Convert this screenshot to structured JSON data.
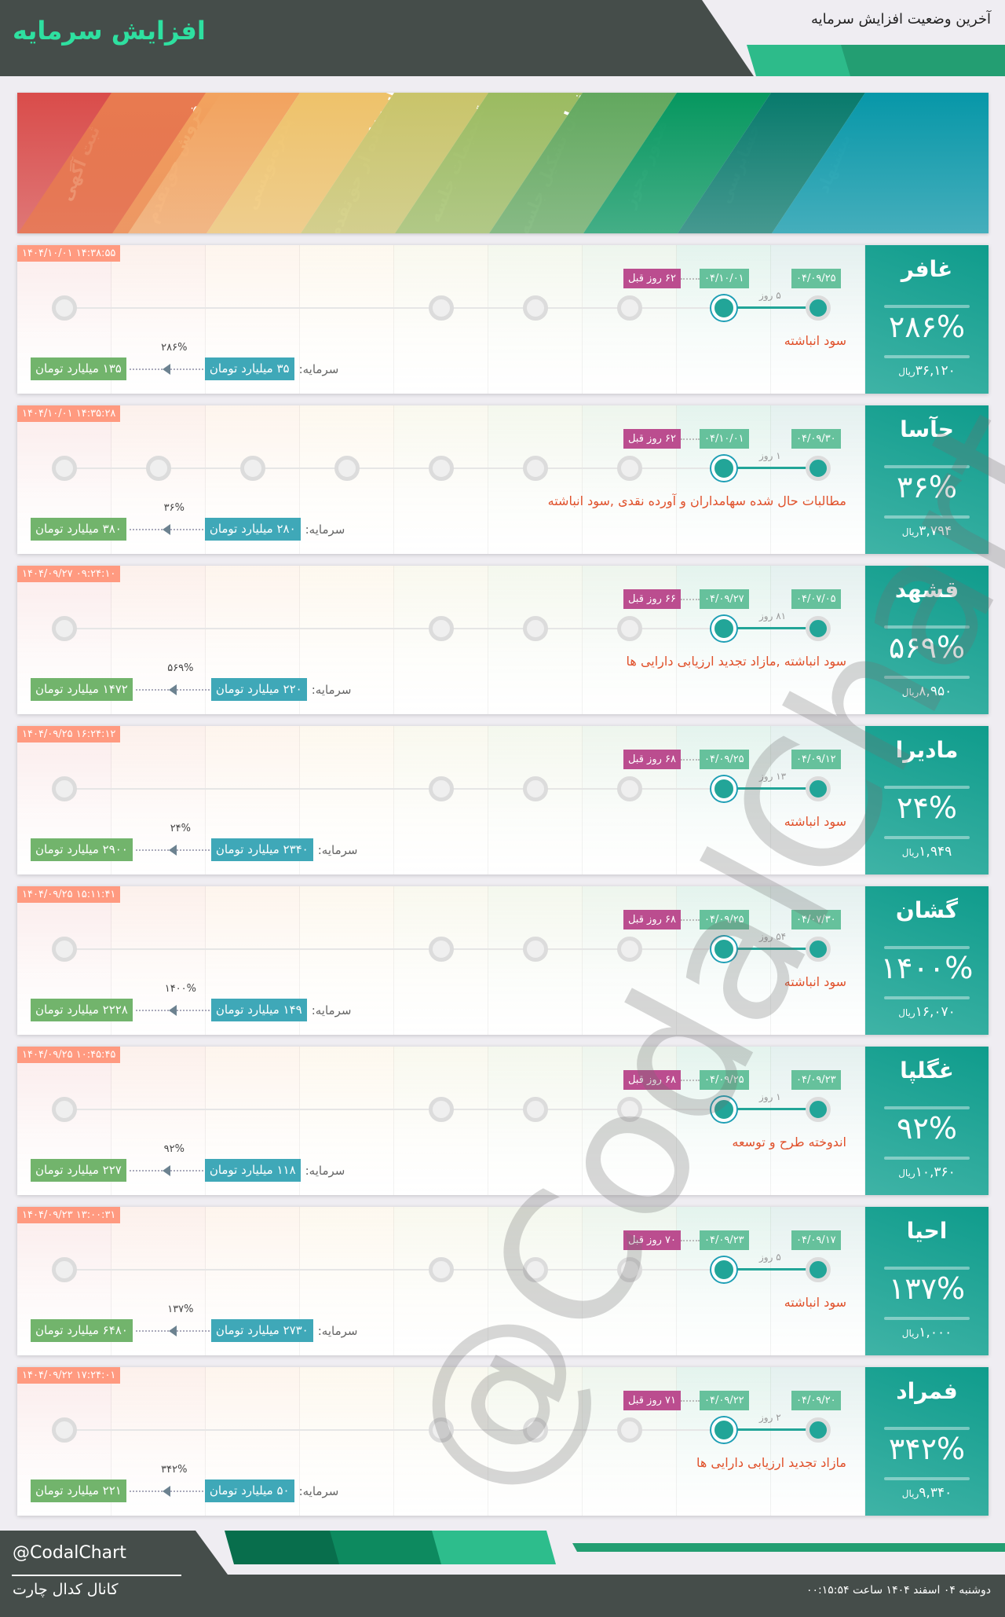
{
  "header": {
    "title": "افزایش سرمایه",
    "subtitle": "آخرین وضعیت افزایش سرمایه"
  },
  "stages": [
    {
      "label": "ثبت آگهی",
      "color": "#d94c4a"
    },
    {
      "label": "فروش حق‌تقدم",
      "color": "#e87b50"
    },
    {
      "label": "پذیره‌نویسی",
      "color": "#f2a35e"
    },
    {
      "label": "استفاده از حق‌تقدم",
      "color": "#eec26a"
    },
    {
      "label": "تصمیمات جلسه",
      "color": "#c9c46a"
    },
    {
      "label": "زمان تشکیل جلسه",
      "color": "#9bbb60"
    },
    {
      "label": "صدور مجوز",
      "color": "#62a85e"
    },
    {
      "label": "حسابرسی",
      "color": "#06975f"
    },
    {
      "label": "پیشنهاد",
      "color": "#087a6c"
    },
    {
      "label": "",
      "color": "#0797a8"
    }
  ],
  "capital_label": "سرمایه:",
  "currency": "ریال",
  "cards": [
    {
      "symbol": "غافر",
      "percent": "۲۸۶%",
      "price": "۳۶,۱۲۰",
      "timestamp": "۱۴۰۴/۱۰/۰۱ ۱۴:۳۸:۵۵",
      "proposal_date": "۰۴/۰۹/۲۵",
      "audit_date": "۰۴/۱۰/۰۱",
      "ago": "۶۲ روز قبل",
      "gap": "۵ روز",
      "source": "سود انباشته",
      "capital_from": "۳۵ میلیارد تومان",
      "capital_to": "۱۳۵ میلیارد تومان",
      "increase": "۲۸۶%",
      "stages_visible": [
        1,
        5,
        6,
        7
      ]
    },
    {
      "symbol": "حآسا",
      "percent": "۳۶%",
      "price": "۳,۷۹۴",
      "timestamp": "۱۴۰۴/۱۰/۰۱ ۱۴:۳۵:۲۸",
      "proposal_date": "۰۴/۰۹/۳۰",
      "audit_date": "۰۴/۱۰/۰۱",
      "ago": "۶۲ روز قبل",
      "gap": "۱ روز",
      "source": "مطالبات حال شده سهامداران و آورده نقدی ,سود انباشته",
      "capital_from": "۲۸۰ میلیارد تومان",
      "capital_to": "۳۸۰ میلیارد تومان",
      "increase": "۳۶%",
      "stages_visible": [
        1,
        2,
        3,
        4,
        5,
        6,
        7
      ]
    },
    {
      "symbol": "قشهد",
      "percent": "۵۶۹%",
      "price": "۸,۹۵۰",
      "timestamp": "۱۴۰۴/۰۹/۲۷ ۰۹:۲۴:۱۰",
      "proposal_date": "۰۴/۰۷/۰۵",
      "audit_date": "۰۴/۰۹/۲۷",
      "ago": "۶۶ روز قبل",
      "gap": "۸۱ روز",
      "source": "سود انباشته ,مازاد تجدید ارزیابی دارایی ها",
      "capital_from": "۲۲۰ میلیارد تومان",
      "capital_to": "۱۴۷۲ میلیارد تومان",
      "increase": "۵۶۹%",
      "stages_visible": [
        1,
        5,
        6,
        7
      ]
    },
    {
      "symbol": "مادیرا",
      "percent": "۲۴%",
      "price": "۱,۹۴۹",
      "timestamp": "۱۴۰۴/۰۹/۲۵ ۱۶:۲۴:۱۲",
      "proposal_date": "۰۴/۰۹/۱۲",
      "audit_date": "۰۴/۰۹/۲۵",
      "ago": "۶۸ روز قبل",
      "gap": "۱۳ روز",
      "source": "سود انباشته",
      "capital_from": "۲۳۴۰ میلیارد تومان",
      "capital_to": "۲۹۰۰ میلیارد تومان",
      "increase": "۲۴%",
      "stages_visible": [
        1,
        5,
        6,
        7
      ]
    },
    {
      "symbol": "گشان",
      "percent": "۱۴۰۰%",
      "price": "۱۶,۰۷۰",
      "timestamp": "۱۴۰۴/۰۹/۲۵ ۱۵:۱۱:۴۱",
      "proposal_date": "۰۴/۰۷/۳۰",
      "audit_date": "۰۴/۰۹/۲۵",
      "ago": "۶۸ روز قبل",
      "gap": "۵۴ روز",
      "source": "سود انباشته",
      "capital_from": "۱۴۹ میلیارد تومان",
      "capital_to": "۲۲۲۸ میلیارد تومان",
      "increase": "۱۴۰۰%",
      "stages_visible": [
        1,
        5,
        6,
        7
      ]
    },
    {
      "symbol": "غگلپا",
      "percent": "۹۲%",
      "price": "۱۰,۳۶۰",
      "timestamp": "۱۴۰۴/۰۹/۲۵ ۱۰:۴۵:۴۵",
      "proposal_date": "۰۴/۰۹/۲۳",
      "audit_date": "۰۴/۰۹/۲۵",
      "ago": "۶۸ روز قبل",
      "gap": "۱ روز",
      "source": "اندوخته طرح و توسعه",
      "capital_from": "۱۱۸ میلیارد تومان",
      "capital_to": "۲۲۷ میلیارد تومان",
      "increase": "۹۲%",
      "stages_visible": [
        1,
        5,
        6,
        7
      ]
    },
    {
      "symbol": "احیا",
      "percent": "۱۳۷%",
      "price": "۱,۰۰۰",
      "timestamp": "۱۴۰۴/۰۹/۲۳ ۱۳:۰۰:۳۱",
      "proposal_date": "۰۴/۰۹/۱۷",
      "audit_date": "۰۴/۰۹/۲۳",
      "ago": "۷۰ روز قبل",
      "gap": "۵ روز",
      "source": "سود انباشته",
      "capital_from": "۲۷۳۰ میلیارد تومان",
      "capital_to": "۶۴۸۰ میلیارد تومان",
      "increase": "۱۳۷%",
      "stages_visible": [
        1,
        5,
        6,
        7
      ]
    },
    {
      "symbol": "فمراد",
      "percent": "۳۴۲%",
      "price": "۹,۳۴۰",
      "timestamp": "۱۴۰۴/۰۹/۲۲ ۱۷:۲۴:۰۱",
      "proposal_date": "۰۴/۰۹/۲۰",
      "audit_date": "۰۴/۰۹/۲۲",
      "ago": "۷۱ روز قبل",
      "gap": "۲ روز",
      "source": "مازاد تجدید ارزیابی دارایی ها",
      "capital_from": "۵۰ میلیارد تومان",
      "capital_to": "۲۲۱ میلیارد تومان",
      "increase": "۳۴۲%",
      "stages_visible": [
        1,
        5,
        6,
        7
      ]
    }
  ],
  "watermark": "@CodalChart",
  "footer": {
    "handle": "@CodalChart",
    "channel": "کانال کدال چارت",
    "datetime": "دوشنبه ۰۴ اسفند ۱۴۰۴ ساعت ۰۰:۱۵:۵۴"
  },
  "colors": {
    "header_dark": "#454d4a",
    "accent": "#2ee0a0",
    "panel": "#1aa090",
    "timestamp": "#ff9a80",
    "date_badge": "#66c19c",
    "ago_badge": "#bb4d8f",
    "source_text": "#e0502a",
    "capital_from": "#3fa8b8",
    "capital_to": "#72b46c"
  }
}
